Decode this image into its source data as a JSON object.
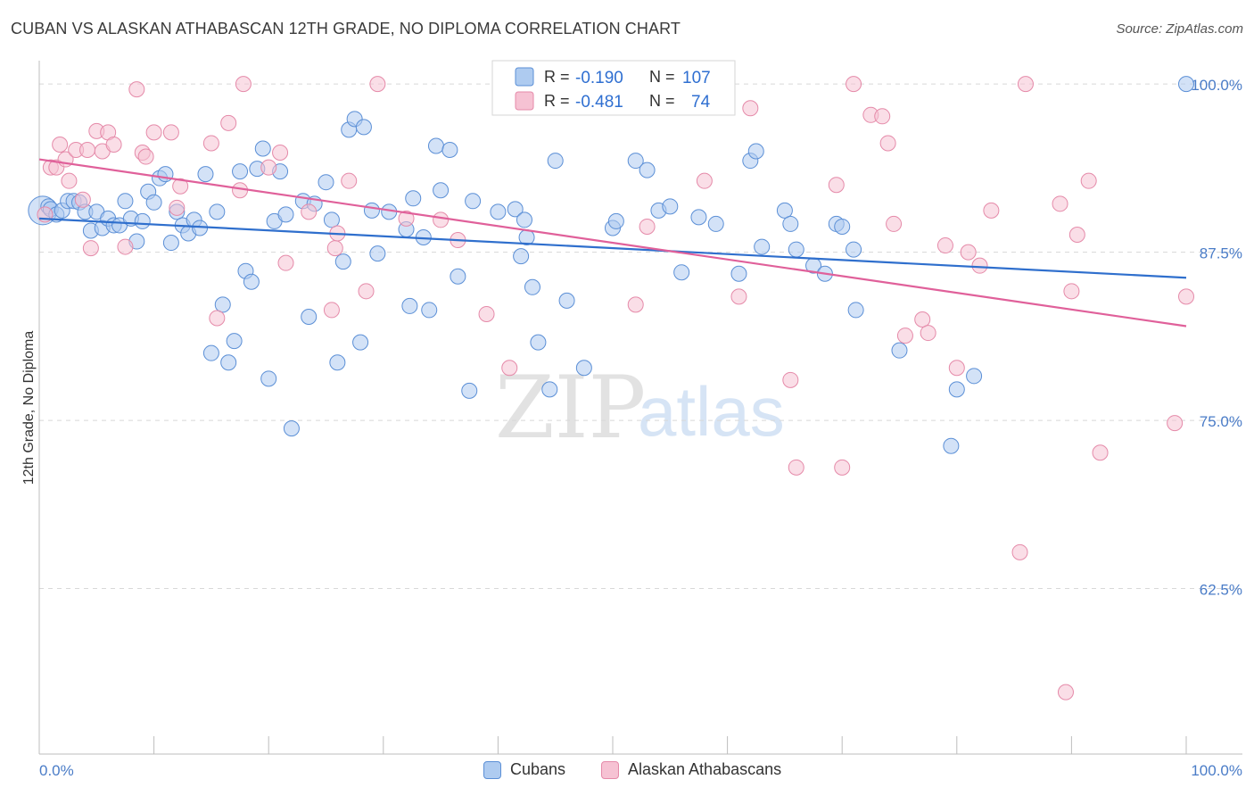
{
  "title": "CUBAN VS ALASKAN ATHABASCAN 12TH GRADE, NO DIPLOMA CORRELATION CHART",
  "source": "Source: ZipAtlas.com",
  "watermark": {
    "zip": "ZIP",
    "atlas": "atlas"
  },
  "colors": {
    "blue_fill": "#aecbf0",
    "blue_stroke": "#5b8fd6",
    "blue_line": "#2f6fcd",
    "pink_fill": "#f6c2d3",
    "pink_stroke": "#e58aa9",
    "pink_line": "#e0609a",
    "grid": "#d8d8d8",
    "axis_text": "#4a7cc7"
  },
  "legend": {
    "rows": [
      {
        "r_label": "R =",
        "r_value": "-0.190",
        "n_label": "N =",
        "n_value": "107"
      },
      {
        "r_label": "R =",
        "r_value": "-0.481",
        "n_label": "N =",
        "n_value": "74"
      }
    ]
  },
  "bottom_legend": {
    "cubans": "Cubans",
    "alaskan": "Alaskan Athabascans"
  },
  "chart_data": {
    "type": "scatter",
    "xlabel": "",
    "ylabel": "12th Grade, No Diploma",
    "xlim": [
      0,
      100
    ],
    "ylim": [
      50.2,
      101.6
    ],
    "y_ticks": [
      {
        "value": 100,
        "label": "100.0%"
      },
      {
        "value": 87.5,
        "label": "87.5%"
      },
      {
        "value": 75,
        "label": "75.0%"
      },
      {
        "value": 62.5,
        "label": "62.5%"
      }
    ],
    "x_tick_labels": {
      "left": "0.0%",
      "right": "100.0%"
    },
    "x_minor_ticks": [
      10,
      20,
      30,
      40,
      50,
      60,
      70,
      80,
      90,
      100
    ],
    "legend_position": "top-center",
    "series": [
      {
        "name": "Cubans",
        "color": "blue",
        "trend": {
          "x": [
            0,
            100
          ],
          "y": [
            90.0,
            85.6
          ]
        },
        "points": [
          [
            0.3,
            90.6
          ],
          [
            0.8,
            90.9
          ],
          [
            1.0,
            90.7
          ],
          [
            1.5,
            90.3
          ],
          [
            2.0,
            90.6
          ],
          [
            2.5,
            91.3
          ],
          [
            3.0,
            91.3
          ],
          [
            3.5,
            91.2
          ],
          [
            4.0,
            90.5
          ],
          [
            4.5,
            89.1
          ],
          [
            5.0,
            90.5
          ],
          [
            5.5,
            89.3
          ],
          [
            6.0,
            90.0
          ],
          [
            6.5,
            89.5
          ],
          [
            7.0,
            89.5
          ],
          [
            7.5,
            91.3
          ],
          [
            8.0,
            90.0
          ],
          [
            8.5,
            88.3
          ],
          [
            9.0,
            89.8
          ],
          [
            9.5,
            92.0
          ],
          [
            10.0,
            91.2
          ],
          [
            10.5,
            93.0
          ],
          [
            11.0,
            93.3
          ],
          [
            11.5,
            88.2
          ],
          [
            12.0,
            90.5
          ],
          [
            12.5,
            89.5
          ],
          [
            13.0,
            88.9
          ],
          [
            13.5,
            89.9
          ],
          [
            14.0,
            89.3
          ],
          [
            14.5,
            93.3
          ],
          [
            15.0,
            80.0
          ],
          [
            15.5,
            90.5
          ],
          [
            16.0,
            83.6
          ],
          [
            16.5,
            79.3
          ],
          [
            17.0,
            80.9
          ],
          [
            17.5,
            93.5
          ],
          [
            18.0,
            86.1
          ],
          [
            18.5,
            85.3
          ],
          [
            19.0,
            93.7
          ],
          [
            19.5,
            95.2
          ],
          [
            20.0,
            78.1
          ],
          [
            20.5,
            89.8
          ],
          [
            21.0,
            93.5
          ],
          [
            21.5,
            90.3
          ],
          [
            22.0,
            74.4
          ],
          [
            23.0,
            91.3
          ],
          [
            23.5,
            82.7
          ],
          [
            24.0,
            91.1
          ],
          [
            25.0,
            92.7
          ],
          [
            25.5,
            89.9
          ],
          [
            26.0,
            79.3
          ],
          [
            26.5,
            86.8
          ],
          [
            27.0,
            96.6
          ],
          [
            27.5,
            97.4
          ],
          [
            28.0,
            80.8
          ],
          [
            28.3,
            96.8
          ],
          [
            29.0,
            90.6
          ],
          [
            29.5,
            87.4
          ],
          [
            30.5,
            90.5
          ],
          [
            32.0,
            89.2
          ],
          [
            32.3,
            83.5
          ],
          [
            32.6,
            91.5
          ],
          [
            33.5,
            88.6
          ],
          [
            34.0,
            83.2
          ],
          [
            34.6,
            95.4
          ],
          [
            35.0,
            92.1
          ],
          [
            35.8,
            95.1
          ],
          [
            36.5,
            85.7
          ],
          [
            37.5,
            77.2
          ],
          [
            37.8,
            91.3
          ],
          [
            40.0,
            90.5
          ],
          [
            41.5,
            90.7
          ],
          [
            42.0,
            87.2
          ],
          [
            42.3,
            89.9
          ],
          [
            42.5,
            88.6
          ],
          [
            43.0,
            84.9
          ],
          [
            43.5,
            80.8
          ],
          [
            44.5,
            77.3
          ],
          [
            45.0,
            94.3
          ],
          [
            46.0,
            83.9
          ],
          [
            47.5,
            78.9
          ],
          [
            50.0,
            89.3
          ],
          [
            50.3,
            89.8
          ],
          [
            52.0,
            94.3
          ],
          [
            53.0,
            93.6
          ],
          [
            54.0,
            90.6
          ],
          [
            55.0,
            90.9
          ],
          [
            56.0,
            86.0
          ],
          [
            57.5,
            90.1
          ],
          [
            59.0,
            89.6
          ],
          [
            61.0,
            85.9
          ],
          [
            62.0,
            94.3
          ],
          [
            62.5,
            95.0
          ],
          [
            63.0,
            87.9
          ],
          [
            65.0,
            90.6
          ],
          [
            65.5,
            89.6
          ],
          [
            66.0,
            87.7
          ],
          [
            67.5,
            86.5
          ],
          [
            68.5,
            85.9
          ],
          [
            69.5,
            89.6
          ],
          [
            70.0,
            89.4
          ],
          [
            71.0,
            87.7
          ],
          [
            71.2,
            83.2
          ],
          [
            75.0,
            80.2
          ],
          [
            79.5,
            73.1
          ],
          [
            80.0,
            77.3
          ],
          [
            81.5,
            78.3
          ],
          [
            100.0,
            100.0
          ]
        ]
      },
      {
        "name": "Alaskan Athabascans",
        "color": "pink",
        "trend": {
          "x": [
            0,
            100
          ],
          "y": [
            94.4,
            82.0
          ]
        },
        "points": [
          [
            0.5,
            90.3
          ],
          [
            1.0,
            93.8
          ],
          [
            1.5,
            93.8
          ],
          [
            1.8,
            95.5
          ],
          [
            2.3,
            94.4
          ],
          [
            2.6,
            92.8
          ],
          [
            3.2,
            95.1
          ],
          [
            3.8,
            91.4
          ],
          [
            4.2,
            95.1
          ],
          [
            4.5,
            87.8
          ],
          [
            5.0,
            96.5
          ],
          [
            5.5,
            95.0
          ],
          [
            6.0,
            96.4
          ],
          [
            6.5,
            95.5
          ],
          [
            7.5,
            87.9
          ],
          [
            8.5,
            99.6
          ],
          [
            9.0,
            94.9
          ],
          [
            9.3,
            94.6
          ],
          [
            10.0,
            96.4
          ],
          [
            11.5,
            96.4
          ],
          [
            12.0,
            90.8
          ],
          [
            12.3,
            92.4
          ],
          [
            15.0,
            95.6
          ],
          [
            15.5,
            82.6
          ],
          [
            16.5,
            97.1
          ],
          [
            17.5,
            92.1
          ],
          [
            17.8,
            100.0
          ],
          [
            20.0,
            93.8
          ],
          [
            21.0,
            94.9
          ],
          [
            21.5,
            86.7
          ],
          [
            23.5,
            90.5
          ],
          [
            25.5,
            83.2
          ],
          [
            25.8,
            87.8
          ],
          [
            26.0,
            88.9
          ],
          [
            27.0,
            92.8
          ],
          [
            28.5,
            84.6
          ],
          [
            29.5,
            100.0
          ],
          [
            32.0,
            90.0
          ],
          [
            35.0,
            89.9
          ],
          [
            36.5,
            88.4
          ],
          [
            39.0,
            82.9
          ],
          [
            41.0,
            78.9
          ],
          [
            52.0,
            83.6
          ],
          [
            53.0,
            89.4
          ],
          [
            58.0,
            92.8
          ],
          [
            61.0,
            84.2
          ],
          [
            62.0,
            98.2
          ],
          [
            65.5,
            78.0
          ],
          [
            66.0,
            71.5
          ],
          [
            69.5,
            92.5
          ],
          [
            70.0,
            71.5
          ],
          [
            71.0,
            100.0
          ],
          [
            72.5,
            97.7
          ],
          [
            73.5,
            97.6
          ],
          [
            74.0,
            95.6
          ],
          [
            74.5,
            89.6
          ],
          [
            75.5,
            81.3
          ],
          [
            77.0,
            82.5
          ],
          [
            77.5,
            81.5
          ],
          [
            79.0,
            88.0
          ],
          [
            80.0,
            78.9
          ],
          [
            81.0,
            87.5
          ],
          [
            82.0,
            86.5
          ],
          [
            83.0,
            90.6
          ],
          [
            85.5,
            65.2
          ],
          [
            86.0,
            100.0
          ],
          [
            89.0,
            91.1
          ],
          [
            89.5,
            54.8
          ],
          [
            90.0,
            84.6
          ],
          [
            90.5,
            88.8
          ],
          [
            91.5,
            92.8
          ],
          [
            92.5,
            72.6
          ],
          [
            99.0,
            74.8
          ],
          [
            100.0,
            84.2
          ]
        ]
      }
    ]
  }
}
